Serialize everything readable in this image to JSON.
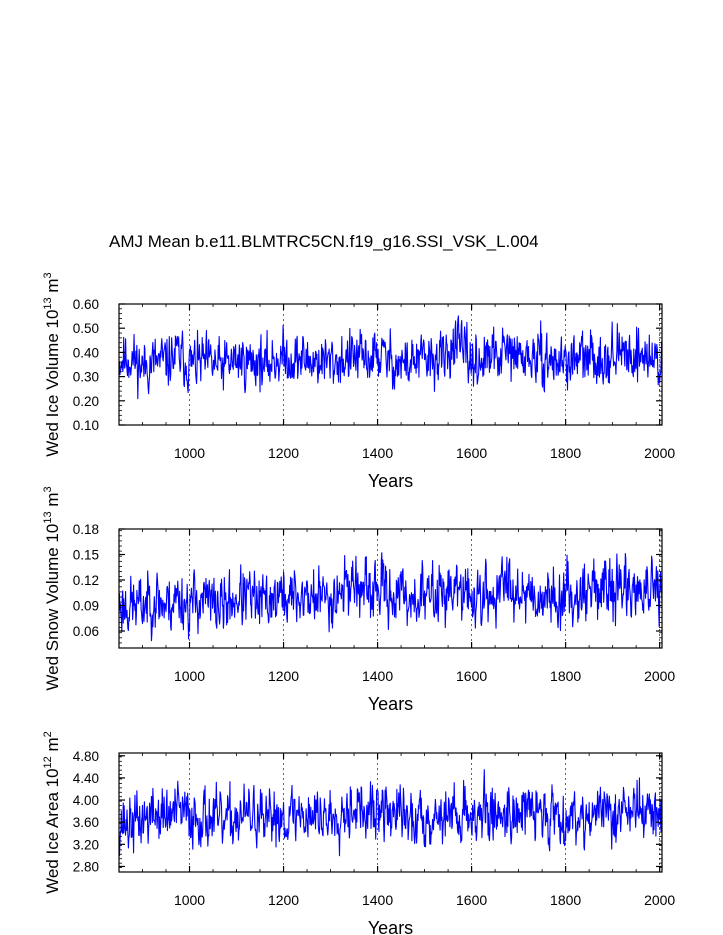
{
  "title": "AMJ Mean b.e11.BLMTRC5CN.f19_g16.SSI_VSK_L.004",
  "chart_data": [
    {
      "type": "line",
      "xlabel": "Years",
      "ylabel_parts": [
        "Wed Ice Volume 10",
        "13",
        " m",
        "3"
      ],
      "xlim": [
        850,
        2005
      ],
      "ylim": [
        0.1,
        0.6
      ],
      "xticks": [
        1000,
        1200,
        1400,
        1600,
        1800,
        2000
      ],
      "xtick_labels": [
        "1000",
        "1200",
        "1400",
        "1600",
        "1800",
        "2000"
      ],
      "yticks": [
        0.1,
        0.2,
        0.3,
        0.4,
        0.5,
        0.6
      ],
      "ytick_labels": [
        "0.10",
        "0.20",
        "0.30",
        "0.40",
        "0.50",
        "0.60"
      ],
      "grid": "dashed vertical at x ticks",
      "line_color": "#0000ff",
      "series": [
        {
          "name": "Wed Ice Volume",
          "mean": 0.365,
          "amplitude": 0.05,
          "seed": 11,
          "x": [
            850,
            875,
            900,
            925,
            950,
            975,
            1000,
            1025,
            1050,
            1070,
            1100,
            1125,
            1150,
            1160,
            1175,
            1200,
            1225,
            1250,
            1300,
            1325,
            1350,
            1375,
            1400,
            1425,
            1450,
            1475,
            1500,
            1525,
            1550,
            1560,
            1600,
            1625,
            1650,
            1675,
            1700,
            1750,
            1800,
            1825,
            1850,
            1875,
            1900,
            1925,
            1950,
            1975,
            2005
          ],
          "y": [
            0.37,
            0.38,
            0.34,
            0.36,
            0.36,
            0.39,
            0.35,
            0.36,
            0.35,
            0.34,
            0.37,
            0.36,
            0.37,
            0.33,
            0.37,
            0.38,
            0.37,
            0.37,
            0.36,
            0.37,
            0.38,
            0.37,
            0.39,
            0.37,
            0.35,
            0.36,
            0.37,
            0.37,
            0.38,
            0.45,
            0.36,
            0.37,
            0.38,
            0.4,
            0.38,
            0.37,
            0.36,
            0.37,
            0.37,
            0.38,
            0.39,
            0.39,
            0.4,
            0.38,
            0.36
          ]
        }
      ]
    },
    {
      "type": "line",
      "xlabel": "Years",
      "ylabel_parts": [
        "Wed Snow Volume 10",
        "13",
        " m",
        "3"
      ],
      "xlim": [
        850,
        2005
      ],
      "ylim": [
        0.04,
        0.18
      ],
      "xticks": [
        1000,
        1200,
        1400,
        1600,
        1800,
        2000
      ],
      "xtick_labels": [
        "1000",
        "1200",
        "1400",
        "1600",
        "1800",
        "2000"
      ],
      "yticks": [
        0.06,
        0.09,
        0.12,
        0.15,
        0.18
      ],
      "ytick_labels": [
        "0.06",
        "0.09",
        "0.12",
        "0.15",
        "0.18"
      ],
      "grid": "dashed vertical at x ticks",
      "line_color": "#0000ff",
      "series": [
        {
          "name": "Wed Snow Volume",
          "mean": 0.098,
          "amplitude": 0.016,
          "seed": 23,
          "x": [
            850,
            875,
            900,
            925,
            950,
            975,
            1000,
            1025,
            1050,
            1075,
            1100,
            1125,
            1150,
            1175,
            1200,
            1250,
            1300,
            1350,
            1375,
            1400,
            1450,
            1500,
            1550,
            1600,
            1650,
            1675,
            1700,
            1750,
            1800,
            1850,
            1900,
            1950,
            2005
          ],
          "y": [
            0.09,
            0.09,
            0.09,
            0.1,
            0.09,
            0.1,
            0.09,
            0.1,
            0.09,
            0.09,
            0.1,
            0.1,
            0.09,
            0.1,
            0.1,
            0.1,
            0.1,
            0.12,
            0.1,
            0.11,
            0.1,
            0.1,
            0.11,
            0.1,
            0.1,
            0.12,
            0.11,
            0.1,
            0.1,
            0.11,
            0.11,
            0.11,
            0.1
          ]
        }
      ]
    },
    {
      "type": "line",
      "xlabel": "Years",
      "ylabel_parts": [
        "Wed Ice Area 10",
        "12",
        " m",
        "2"
      ],
      "xlim": [
        850,
        2005
      ],
      "ylim": [
        2.7,
        4.85
      ],
      "xticks": [
        1000,
        1200,
        1400,
        1600,
        1800,
        2000
      ],
      "xtick_labels": [
        "1000",
        "1200",
        "1400",
        "1600",
        "1800",
        "2000"
      ],
      "yticks": [
        2.8,
        3.2,
        3.6,
        4.0,
        4.4,
        4.8
      ],
      "ytick_labels": [
        "2.80",
        "3.20",
        "3.60",
        "4.00",
        "4.40",
        "4.80"
      ],
      "grid": "dashed vertical at x ticks",
      "line_color": "#0000ff",
      "series": [
        {
          "name": "Wed Ice Area",
          "mean": 3.72,
          "amplitude": 0.24,
          "seed": 37,
          "x": [
            850,
            875,
            900,
            925,
            950,
            975,
            1000,
            1025,
            1050,
            1070,
            1100,
            1125,
            1150,
            1160,
            1175,
            1200,
            1250,
            1300,
            1350,
            1375,
            1400,
            1450,
            1475,
            1500,
            1550,
            1600,
            1650,
            1700,
            1750,
            1800,
            1850,
            1900,
            1950,
            2005
          ],
          "y": [
            3.62,
            3.55,
            3.65,
            3.75,
            3.7,
            3.8,
            3.7,
            3.72,
            3.65,
            3.55,
            3.7,
            3.72,
            3.7,
            3.4,
            3.75,
            3.72,
            3.75,
            3.7,
            3.95,
            3.7,
            3.8,
            3.75,
            3.6,
            3.7,
            3.75,
            3.75,
            3.75,
            3.8,
            3.78,
            3.7,
            3.75,
            3.78,
            3.85,
            3.7
          ]
        }
      ]
    }
  ]
}
